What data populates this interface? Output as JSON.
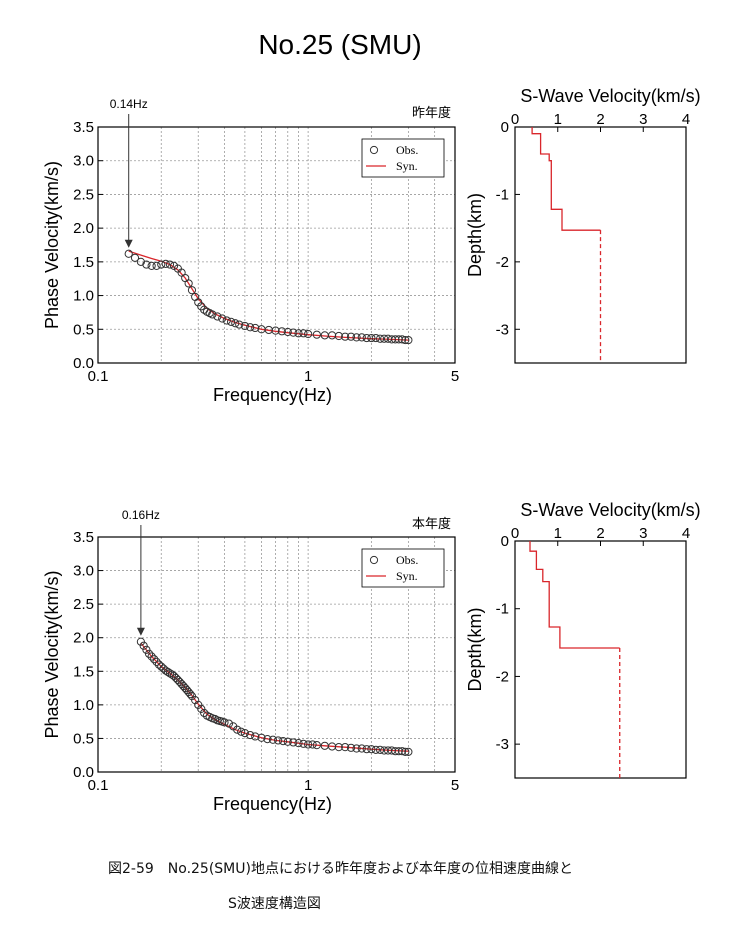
{
  "title": "No.25 (SMU)",
  "caption_line1": "図2-59　No.25(SMU)地点における昨年度および本年度の位相速度曲線と",
  "caption_line2": "S波速度構造図",
  "colors": {
    "obs_marker": "#333333",
    "syn_line": "#d9262b",
    "frame": "#000000"
  },
  "charts": [
    {
      "tag": "昨年度",
      "arrow_label": "0.14Hz",
      "arrow_freq": 0.14,
      "legend": [
        "Obs.",
        "Syn."
      ],
      "dispersion": {
        "type": "scatter",
        "xlabel": "Frequency(Hz)",
        "ylabel": "Phase Velocity(km/s)",
        "xscale": "log",
        "xlim": [
          0.1,
          5
        ],
        "ylim": [
          0,
          3.5
        ],
        "xticks": [
          "0.1",
          "1",
          "5"
        ],
        "yticks": [
          "0.0",
          "0.5",
          "1.0",
          "1.5",
          "2.0",
          "2.5",
          "3.0",
          "3.5"
        ],
        "obs_x": [
          0.14,
          0.15,
          0.16,
          0.17,
          0.18,
          0.19,
          0.2,
          0.21,
          0.22,
          0.23,
          0.24,
          0.25,
          0.26,
          0.27,
          0.28,
          0.29,
          0.3,
          0.31,
          0.32,
          0.33,
          0.34,
          0.35,
          0.37,
          0.39,
          0.41,
          0.43,
          0.45,
          0.47,
          0.5,
          0.53,
          0.56,
          0.6,
          0.65,
          0.7,
          0.75,
          0.8,
          0.85,
          0.9,
          0.95,
          1.0,
          1.1,
          1.2,
          1.3,
          1.4,
          1.5,
          1.6,
          1.7,
          1.8,
          1.9,
          2.0,
          2.1,
          2.2,
          2.3,
          2.4,
          2.5,
          2.6,
          2.7,
          2.8,
          2.9,
          3.0
        ],
        "obs_y": [
          1.62,
          1.56,
          1.5,
          1.46,
          1.44,
          1.44,
          1.46,
          1.47,
          1.46,
          1.44,
          1.4,
          1.34,
          1.26,
          1.18,
          1.08,
          0.98,
          0.9,
          0.84,
          0.79,
          0.76,
          0.74,
          0.72,
          0.69,
          0.66,
          0.63,
          0.61,
          0.59,
          0.57,
          0.55,
          0.53,
          0.52,
          0.5,
          0.49,
          0.48,
          0.47,
          0.46,
          0.45,
          0.44,
          0.44,
          0.43,
          0.42,
          0.41,
          0.41,
          0.4,
          0.39,
          0.39,
          0.38,
          0.38,
          0.37,
          0.37,
          0.37,
          0.36,
          0.36,
          0.36,
          0.35,
          0.35,
          0.35,
          0.35,
          0.34,
          0.34
        ],
        "syn_x": [
          0.14,
          0.16,
          0.18,
          0.2,
          0.22,
          0.24,
          0.26,
          0.28,
          0.3,
          0.33,
          0.36,
          0.4,
          0.45,
          0.5,
          0.6,
          0.7,
          0.8,
          1.0,
          1.2,
          1.5,
          2.0,
          2.5,
          3.0
        ],
        "syn_y": [
          1.66,
          1.6,
          1.55,
          1.51,
          1.46,
          1.38,
          1.26,
          1.1,
          0.95,
          0.81,
          0.73,
          0.66,
          0.6,
          0.56,
          0.5,
          0.47,
          0.45,
          0.42,
          0.4,
          0.38,
          0.36,
          0.35,
          0.34
        ]
      },
      "profile": {
        "type": "line",
        "title": "S-Wave Velocity(km/s)",
        "ylabel": "Depth(km)",
        "xlim": [
          0,
          4
        ],
        "ylim": [
          -3.5,
          0
        ],
        "xticks": [
          "0",
          "1",
          "2",
          "3",
          "4"
        ],
        "yticks": [
          "0",
          "-1",
          "-2",
          "-3"
        ],
        "layers": [
          {
            "vs": 0.4,
            "top": 0,
            "bottom": 0.1
          },
          {
            "vs": 0.6,
            "top": 0.1,
            "bottom": 0.4
          },
          {
            "vs": 0.8,
            "top": 0.4,
            "bottom": 0.5
          },
          {
            "vs": 0.85,
            "top": 0.5,
            "bottom": 1.22
          },
          {
            "vs": 1.1,
            "top": 1.22,
            "bottom": 1.53
          }
        ],
        "halfspace": {
          "vs": 2.0,
          "top": 1.53,
          "bottom": 3.5
        }
      }
    },
    {
      "tag": "本年度",
      "arrow_label": "0.16Hz",
      "arrow_freq": 0.16,
      "legend": [
        "Obs.",
        "Syn."
      ],
      "dispersion": {
        "type": "scatter",
        "xlabel": "Frequency(Hz)",
        "ylabel": "Phase Velocity(km/s)",
        "xscale": "log",
        "xlim": [
          0.1,
          5
        ],
        "ylim": [
          0,
          3.5
        ],
        "xticks": [
          "0.1",
          "1",
          "5"
        ],
        "yticks": [
          "0.0",
          "0.5",
          "1.0",
          "1.5",
          "2.0",
          "2.5",
          "3.0",
          "3.5"
        ],
        "obs_x": [
          0.16,
          0.165,
          0.17,
          0.175,
          0.18,
          0.185,
          0.19,
          0.195,
          0.2,
          0.205,
          0.21,
          0.215,
          0.22,
          0.225,
          0.23,
          0.235,
          0.24,
          0.245,
          0.25,
          0.255,
          0.26,
          0.265,
          0.27,
          0.275,
          0.28,
          0.29,
          0.3,
          0.31,
          0.32,
          0.33,
          0.34,
          0.35,
          0.36,
          0.37,
          0.38,
          0.39,
          0.4,
          0.42,
          0.44,
          0.46,
          0.48,
          0.5,
          0.53,
          0.56,
          0.6,
          0.64,
          0.68,
          0.72,
          0.76,
          0.8,
          0.85,
          0.9,
          0.95,
          1.0,
          1.05,
          1.1,
          1.2,
          1.3,
          1.4,
          1.5,
          1.6,
          1.7,
          1.8,
          1.9,
          2.0,
          2.1,
          2.2,
          2.3,
          2.4,
          2.5,
          2.6,
          2.7,
          2.8,
          2.9,
          3.0
        ],
        "obs_y": [
          1.94,
          1.88,
          1.82,
          1.76,
          1.72,
          1.68,
          1.64,
          1.6,
          1.57,
          1.54,
          1.51,
          1.49,
          1.47,
          1.45,
          1.43,
          1.4,
          1.37,
          1.34,
          1.31,
          1.28,
          1.25,
          1.22,
          1.19,
          1.16,
          1.13,
          1.07,
          1.0,
          0.94,
          0.88,
          0.84,
          0.82,
          0.8,
          0.79,
          0.77,
          0.76,
          0.75,
          0.74,
          0.72,
          0.68,
          0.63,
          0.6,
          0.58,
          0.55,
          0.53,
          0.51,
          0.49,
          0.48,
          0.47,
          0.46,
          0.45,
          0.44,
          0.43,
          0.42,
          0.41,
          0.41,
          0.4,
          0.39,
          0.38,
          0.37,
          0.37,
          0.36,
          0.35,
          0.35,
          0.34,
          0.34,
          0.33,
          0.33,
          0.32,
          0.32,
          0.32,
          0.31,
          0.31,
          0.31,
          0.3,
          0.3
        ],
        "syn_x": [
          0.16,
          0.18,
          0.2,
          0.22,
          0.24,
          0.26,
          0.28,
          0.3,
          0.33,
          0.36,
          0.4,
          0.45,
          0.5,
          0.6,
          0.7,
          0.8,
          1.0,
          1.2,
          1.5,
          2.0,
          2.5,
          3.0
        ],
        "syn_y": [
          1.92,
          1.72,
          1.57,
          1.47,
          1.37,
          1.26,
          1.14,
          1.01,
          0.86,
          0.78,
          0.71,
          0.63,
          0.58,
          0.51,
          0.47,
          0.45,
          0.41,
          0.39,
          0.37,
          0.34,
          0.32,
          0.31
        ]
      },
      "profile": {
        "type": "line",
        "title": "S-Wave Velocity(km/s)",
        "ylabel": "Depth(km)",
        "xlim": [
          0,
          4
        ],
        "ylim": [
          -3.5,
          0
        ],
        "xticks": [
          "0",
          "1",
          "2",
          "3",
          "4"
        ],
        "yticks": [
          "0",
          "-1",
          "-2",
          "-3"
        ],
        "layers": [
          {
            "vs": 0.35,
            "top": 0,
            "bottom": 0.15
          },
          {
            "vs": 0.5,
            "top": 0.15,
            "bottom": 0.42
          },
          {
            "vs": 0.65,
            "top": 0.42,
            "bottom": 0.6
          },
          {
            "vs": 0.8,
            "top": 0.6,
            "bottom": 1.27
          },
          {
            "vs": 1.05,
            "top": 1.27,
            "bottom": 1.58
          }
        ],
        "halfspace": {
          "vs": 2.45,
          "top": 1.58,
          "bottom": 3.5
        }
      }
    }
  ]
}
